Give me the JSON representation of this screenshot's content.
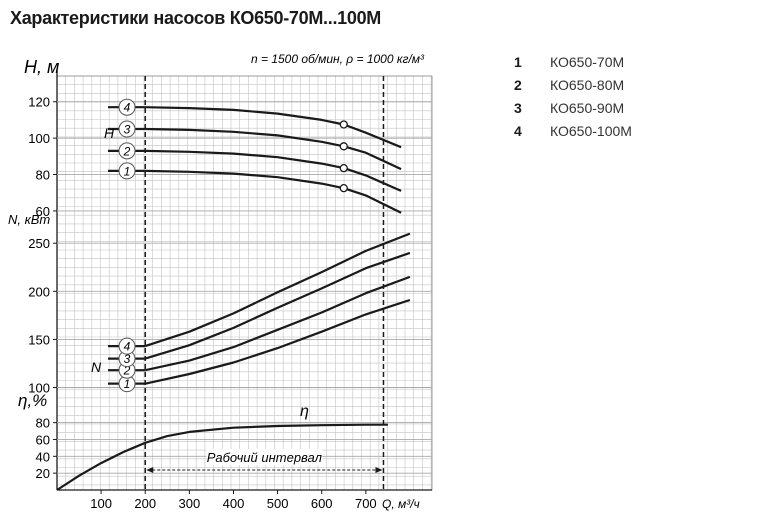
{
  "title": "Характеристики насосов КО650-70М...100М",
  "legend": [
    {
      "num": "1",
      "name": "КО650-70М"
    },
    {
      "num": "2",
      "name": "КО650-80М"
    },
    {
      "num": "3",
      "name": "КО650-90М"
    },
    {
      "num": "4",
      "name": "КО650-100М"
    }
  ],
  "chart_data": {
    "type": "line",
    "conditions_text": "n = 1500 об/мин, ρ = 1000 кг/м³",
    "xlabel": "Q, м³/ч",
    "x_ticks": [
      100,
      200,
      300,
      400,
      500,
      600,
      700
    ],
    "xlim": [
      0,
      850
    ],
    "working_interval": {
      "label": "Рабочий интервал",
      "range": [
        200,
        740
      ]
    },
    "panels": [
      {
        "id": "head",
        "ylabel": "H, м",
        "curve_label": "H",
        "ylim": [
          55,
          127
        ],
        "y_ticks": [
          60,
          80,
          100,
          120
        ],
        "series": [
          {
            "name": "1",
            "x": [
              200,
              300,
              400,
              500,
              600,
              650,
              700,
              780
            ],
            "y": [
              82,
              81.5,
              80.5,
              78.5,
              75,
              72.5,
              68.5,
              59
            ]
          },
          {
            "name": "2",
            "x": [
              200,
              300,
              400,
              500,
              600,
              650,
              700,
              780
            ],
            "y": [
              93,
              92.5,
              91.5,
              89.5,
              86,
              83.5,
              79.5,
              71
            ]
          },
          {
            "name": "3",
            "x": [
              200,
              300,
              400,
              500,
              600,
              650,
              700,
              780
            ],
            "y": [
              105,
              104.5,
              103.5,
              101.5,
              98,
              95.5,
              92,
              83
            ]
          },
          {
            "name": "4",
            "x": [
              200,
              300,
              400,
              500,
              600,
              650,
              700,
              780
            ],
            "y": [
              117,
              116.5,
              115.5,
              113.5,
              110,
              107.5,
              103,
              95
            ]
          }
        ],
        "markers": [
          {
            "series": "1",
            "x": 650,
            "y": 72.5
          },
          {
            "series": "2",
            "x": 650,
            "y": 83.5
          },
          {
            "series": "3",
            "x": 650,
            "y": 95.5
          },
          {
            "series": "4",
            "x": 650,
            "y": 107.5
          }
        ]
      },
      {
        "id": "power",
        "ylabel": "N, кВт",
        "curve_label": "N",
        "ylim": [
          87,
          270
        ],
        "y_ticks": [
          100,
          150,
          200,
          250
        ],
        "series": [
          {
            "name": "1",
            "x": [
              200,
              300,
              400,
              500,
              600,
              700,
              800
            ],
            "y": [
              104,
              114,
              126,
              141,
              158,
              176,
              191
            ]
          },
          {
            "name": "2",
            "x": [
              200,
              300,
              400,
              500,
              600,
              700,
              800
            ],
            "y": [
              118,
              128,
              142,
              160,
              178,
              198,
              215
            ]
          },
          {
            "name": "3",
            "x": [
              200,
              300,
              400,
              500,
              600,
              700,
              800
            ],
            "y": [
              130,
              144,
              162,
              183,
              203,
              224,
              240
            ]
          },
          {
            "name": "4",
            "x": [
              200,
              300,
              400,
              500,
              600,
              700,
              800
            ],
            "y": [
              143,
              158,
              177,
              199,
              220,
              242,
              260
            ]
          }
        ]
      },
      {
        "id": "efficiency",
        "ylabel": "η,%",
        "curve_label": "η",
        "ylim": [
          0,
          95
        ],
        "y_ticks": [
          20,
          40,
          60,
          80
        ],
        "series": [
          {
            "name": "η",
            "x": [
              0,
              50,
              100,
              150,
              200,
              250,
              300,
              400,
              500,
              600,
              700,
              750
            ],
            "y": [
              0,
              17,
              32,
              45,
              56,
              64,
              69,
              74,
              76,
              77,
              77.5,
              77.5
            ]
          }
        ]
      }
    ]
  }
}
